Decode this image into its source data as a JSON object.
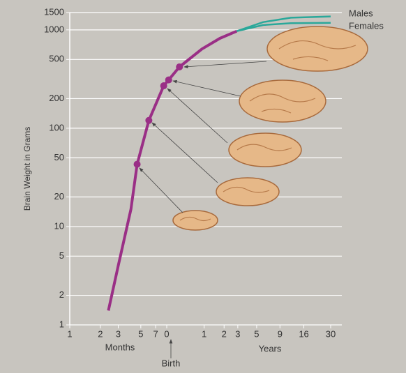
{
  "chart_data": {
    "type": "line",
    "y_label": "Brain Weight in Grams",
    "x_label_months": "Months",
    "x_label_years": "Years",
    "annotation": "Birth",
    "x_log": true,
    "y_log": true,
    "grid": true,
    "xlim": [
      1,
      369
    ],
    "ylim": [
      1,
      1500
    ],
    "xticks": [
      {
        "value": 1,
        "label": "1"
      },
      {
        "value": 2,
        "label": "2"
      },
      {
        "value": 3,
        "label": "3"
      },
      {
        "value": 5,
        "label": "5"
      },
      {
        "value": 7,
        "label": "7"
      },
      {
        "value": 9,
        "label": "0"
      },
      {
        "value": 21,
        "label": "1"
      },
      {
        "value": 33,
        "label": "2"
      },
      {
        "value": 45,
        "label": "3"
      },
      {
        "value": 69,
        "label": "5"
      },
      {
        "value": 117,
        "label": "9"
      },
      {
        "value": 201,
        "label": "16"
      },
      {
        "value": 369,
        "label": "30"
      }
    ],
    "yticks": [
      1,
      2,
      5,
      10,
      20,
      50,
      100,
      200,
      500,
      1000,
      1500
    ],
    "series": [
      {
        "color": "#9a2f86",
        "x": [
          2.4,
          3,
          4,
          4.6,
          6,
          8.4,
          9.4,
          12,
          20,
          30,
          44
        ],
        "values": [
          1.4,
          4,
          15,
          43,
          120,
          270,
          310,
          420,
          640,
          820,
          970
        ]
      },
      {
        "name": "Males",
        "color": "#2aa89a",
        "x": [
          44,
          80,
          150,
          369
        ],
        "values": [
          970,
          1200,
          1330,
          1370
        ]
      },
      {
        "name": "Females",
        "color": "#2aa89a",
        "x": [
          44,
          80,
          150,
          369
        ],
        "values": [
          970,
          1120,
          1170,
          1180
        ]
      },
      {
        "color": "#9a2f86",
        "marker": true,
        "x": [
          4.6,
          6,
          8.4,
          9.4,
          12
        ],
        "values": [
          43,
          120,
          270,
          310,
          420
        ]
      }
    ]
  }
}
